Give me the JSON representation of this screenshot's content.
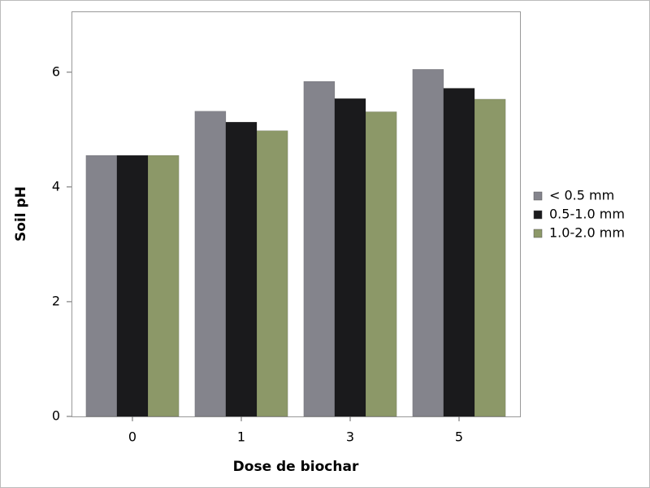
{
  "chart_data": {
    "type": "bar",
    "x_label": "Dose de biochar",
    "y_label": "Soil pH",
    "categories": [
      "0",
      "1",
      "3",
      "5"
    ],
    "series": [
      {
        "name": "< 0.5 mm",
        "color": "#84848c",
        "values": [
          4.55,
          5.32,
          5.84,
          6.05
        ]
      },
      {
        "name": "0.5-1.0 mm",
        "color": "#1a1a1c",
        "values": [
          4.55,
          5.13,
          5.54,
          5.72
        ]
      },
      {
        "name": "1.0-2.0 mm",
        "color": "#8c9868",
        "values": [
          4.55,
          4.98,
          5.31,
          5.53
        ]
      }
    ],
    "ylim": [
      0,
      7.06
    ],
    "yticks": [
      0,
      2,
      4,
      6
    ],
    "grid": false,
    "legend": "right"
  }
}
